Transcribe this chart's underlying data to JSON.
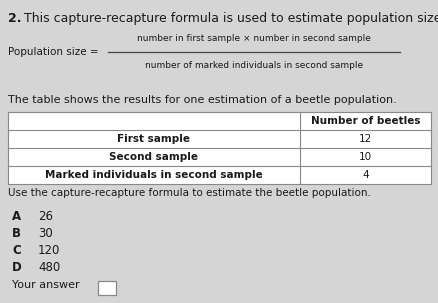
{
  "background_color": "#d5d5d5",
  "question_number": "2.",
  "question_text": " This capture-recapture formula is used to estimate population size:",
  "formula_label": "Population size = ",
  "formula_numerator": "number in first sample × number in second sample",
  "formula_denominator": "number of marked individuals in second sample",
  "table_intro": "The table shows the results for one estimation of a beetle population.",
  "table_header": "Number of beetles",
  "table_rows": [
    [
      "First sample",
      "12"
    ],
    [
      "Second sample",
      "10"
    ],
    [
      "Marked individuals in second sample",
      "4"
    ]
  ],
  "table_note": "Use the capture-recapture formula to estimate the beetle population.",
  "options": [
    [
      "A",
      "26"
    ],
    [
      "B",
      "30"
    ],
    [
      "C",
      "120"
    ],
    [
      "D",
      "480"
    ]
  ],
  "answer_label": "Your answer",
  "text_color": "#1a1a1a",
  "table_border_color": "#888888",
  "answer_box_color": "#cccccc"
}
